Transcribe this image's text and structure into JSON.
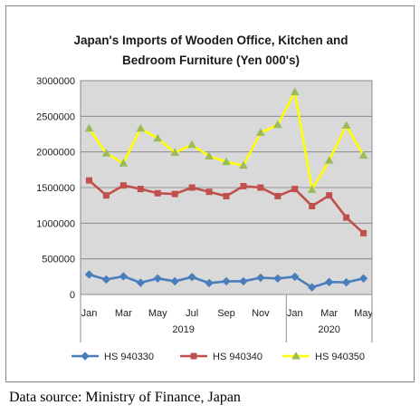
{
  "chart_data": {
    "type": "line",
    "title_lines": [
      "Japan's Imports of  Wooden  Office, Kitchen and",
      "Bedroom Furniture (Yen 000's)"
    ],
    "x": [
      "Jan",
      "Feb",
      "Mar",
      "Apr",
      "May",
      "Jun",
      "Jul",
      "Aug",
      "Sep",
      "Oct",
      "Nov",
      "Dec",
      "Jan",
      "Feb",
      "Mar",
      "Apr",
      "May"
    ],
    "x_tick_labels": [
      "Jan",
      "",
      "Mar",
      "",
      "May",
      "",
      "Jul",
      "",
      "Sep",
      "",
      "Nov",
      "",
      "Jan",
      "",
      "Mar",
      "",
      "May"
    ],
    "year_labels": [
      {
        "label": "2019",
        "from": 0,
        "to": 11
      },
      {
        "label": "2020",
        "from": 12,
        "to": 16
      }
    ],
    "y_ticks": [
      "0",
      "500000",
      "1000000",
      "1500000",
      "2000000",
      "2500000",
      "3000000"
    ],
    "ylim": [
      0,
      3000000
    ],
    "grid": true,
    "legend_position": "bottom",
    "series": [
      {
        "name": "HS 940330",
        "color": "#4a7ebb",
        "marker": "diamond",
        "values": [
          280000,
          210000,
          255000,
          165000,
          225000,
          185000,
          245000,
          160000,
          185000,
          185000,
          235000,
          225000,
          250000,
          100000,
          175000,
          170000,
          225000
        ]
      },
      {
        "name": "HS 940340",
        "color": "#c0504d",
        "marker": "square",
        "values": [
          1600000,
          1390000,
          1530000,
          1480000,
          1420000,
          1410000,
          1500000,
          1440000,
          1380000,
          1520000,
          1500000,
          1380000,
          1480000,
          1240000,
          1390000,
          1080000,
          860000
        ]
      },
      {
        "name": "HS 940350",
        "color": "#ffff00",
        "marker": "triangle",
        "values": [
          2330000,
          1980000,
          1840000,
          2330000,
          2190000,
          1990000,
          2100000,
          1940000,
          1860000,
          1810000,
          2270000,
          2380000,
          2840000,
          1470000,
          1880000,
          2370000,
          1950000
        ]
      }
    ]
  },
  "source_note": "Data source: Ministry of Finance, Japan"
}
